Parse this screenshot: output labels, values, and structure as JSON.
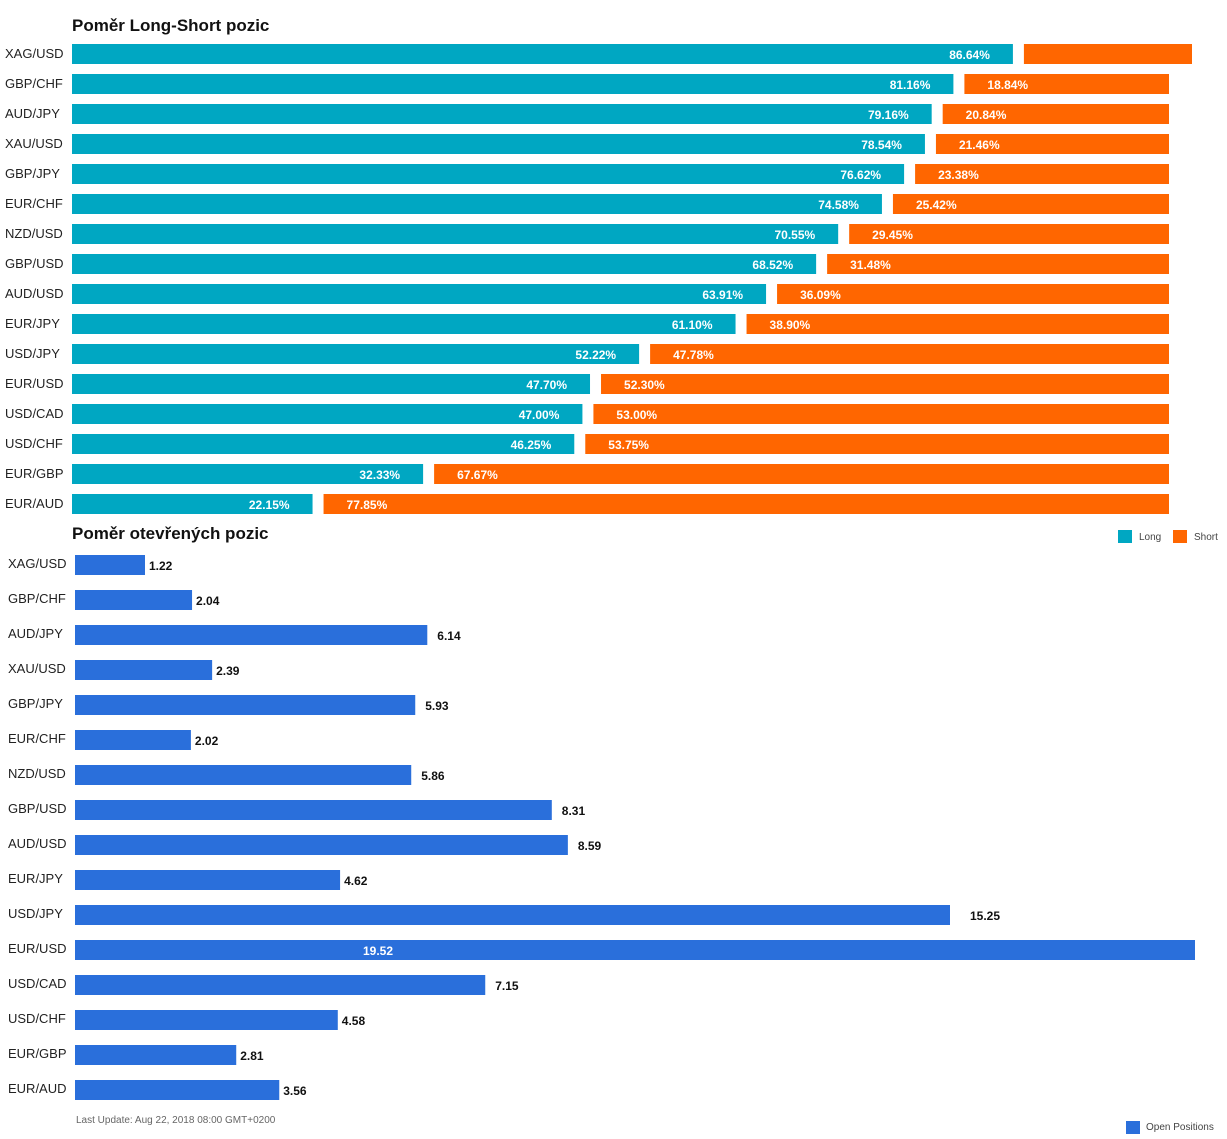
{
  "chart_data": [
    {
      "type": "bar",
      "orientation": "horizontal",
      "stacked": true,
      "title": "Poměr Long-Short pozic",
      "categories": [
        "XAG/USD",
        "GBP/CHF",
        "AUD/JPY",
        "XAU/USD",
        "GBP/JPY",
        "EUR/CHF",
        "NZD/USD",
        "GBP/USD",
        "AUD/USD",
        "EUR/JPY",
        "USD/JPY",
        "EUR/USD",
        "USD/CAD",
        "USD/CHF",
        "EUR/GBP",
        "EUR/AUD"
      ],
      "series": [
        {
          "name": "Long",
          "color": "#00a7c2",
          "values": [
            86.64,
            81.16,
            79.16,
            78.54,
            76.62,
            74.58,
            70.55,
            68.52,
            63.91,
            61.1,
            52.22,
            47.7,
            47.0,
            46.25,
            32.33,
            22.15
          ],
          "labels": [
            "86.64%",
            "81.16%",
            "79.16%",
            "78.54%",
            "76.62%",
            "74.58%",
            "70.55%",
            "68.52%",
            "63.91%",
            "61.10%",
            "52.22%",
            "47.70%",
            "47.00%",
            "46.25%",
            "32.33%",
            "22.15%"
          ]
        },
        {
          "name": "Short",
          "color": "#ff6600",
          "values": [
            13.36,
            18.84,
            20.84,
            21.46,
            23.38,
            25.42,
            29.45,
            31.48,
            36.09,
            38.9,
            47.78,
            52.3,
            53.0,
            53.75,
            67.67,
            77.85
          ],
          "labels": [
            "",
            "18.84%",
            "20.84%",
            "21.46%",
            "23.38%",
            "25.42%",
            "29.45%",
            "31.48%",
            "36.09%",
            "38.90%",
            "47.78%",
            "52.30%",
            "53.00%",
            "53.75%",
            "67.67%",
            "77.85%"
          ]
        }
      ],
      "xlim": [
        0,
        100
      ],
      "legend_position": "bottom-right"
    },
    {
      "type": "bar",
      "orientation": "horizontal",
      "title": "Poměr otevřených pozic",
      "categories": [
        "XAG/USD",
        "GBP/CHF",
        "AUD/JPY",
        "XAU/USD",
        "GBP/JPY",
        "EUR/CHF",
        "NZD/USD",
        "GBP/USD",
        "AUD/USD",
        "EUR/JPY",
        "USD/JPY",
        "EUR/USD",
        "USD/CAD",
        "USD/CHF",
        "EUR/GBP",
        "EUR/AUD"
      ],
      "series": [
        {
          "name": "Open Positions",
          "color": "#2a6fdb",
          "values": [
            1.22,
            2.04,
            6.14,
            2.39,
            5.93,
            2.02,
            5.86,
            8.31,
            8.59,
            4.62,
            15.25,
            19.52,
            7.15,
            4.58,
            2.81,
            3.56
          ],
          "labels": [
            "1.22",
            "2.04",
            "6.14",
            "2.39",
            "5.93",
            "2.02",
            "5.86",
            "8.31",
            "8.59",
            "4.62",
            "15.25",
            "19.52",
            "7.15",
            "4.58",
            "2.81",
            "3.56"
          ]
        }
      ],
      "xlim": [
        0,
        19.52
      ],
      "legend_position": "bottom-right"
    }
  ],
  "footer": {
    "last_update": "Last Update: Aug 22, 2018 08:00 GMT+0200"
  }
}
